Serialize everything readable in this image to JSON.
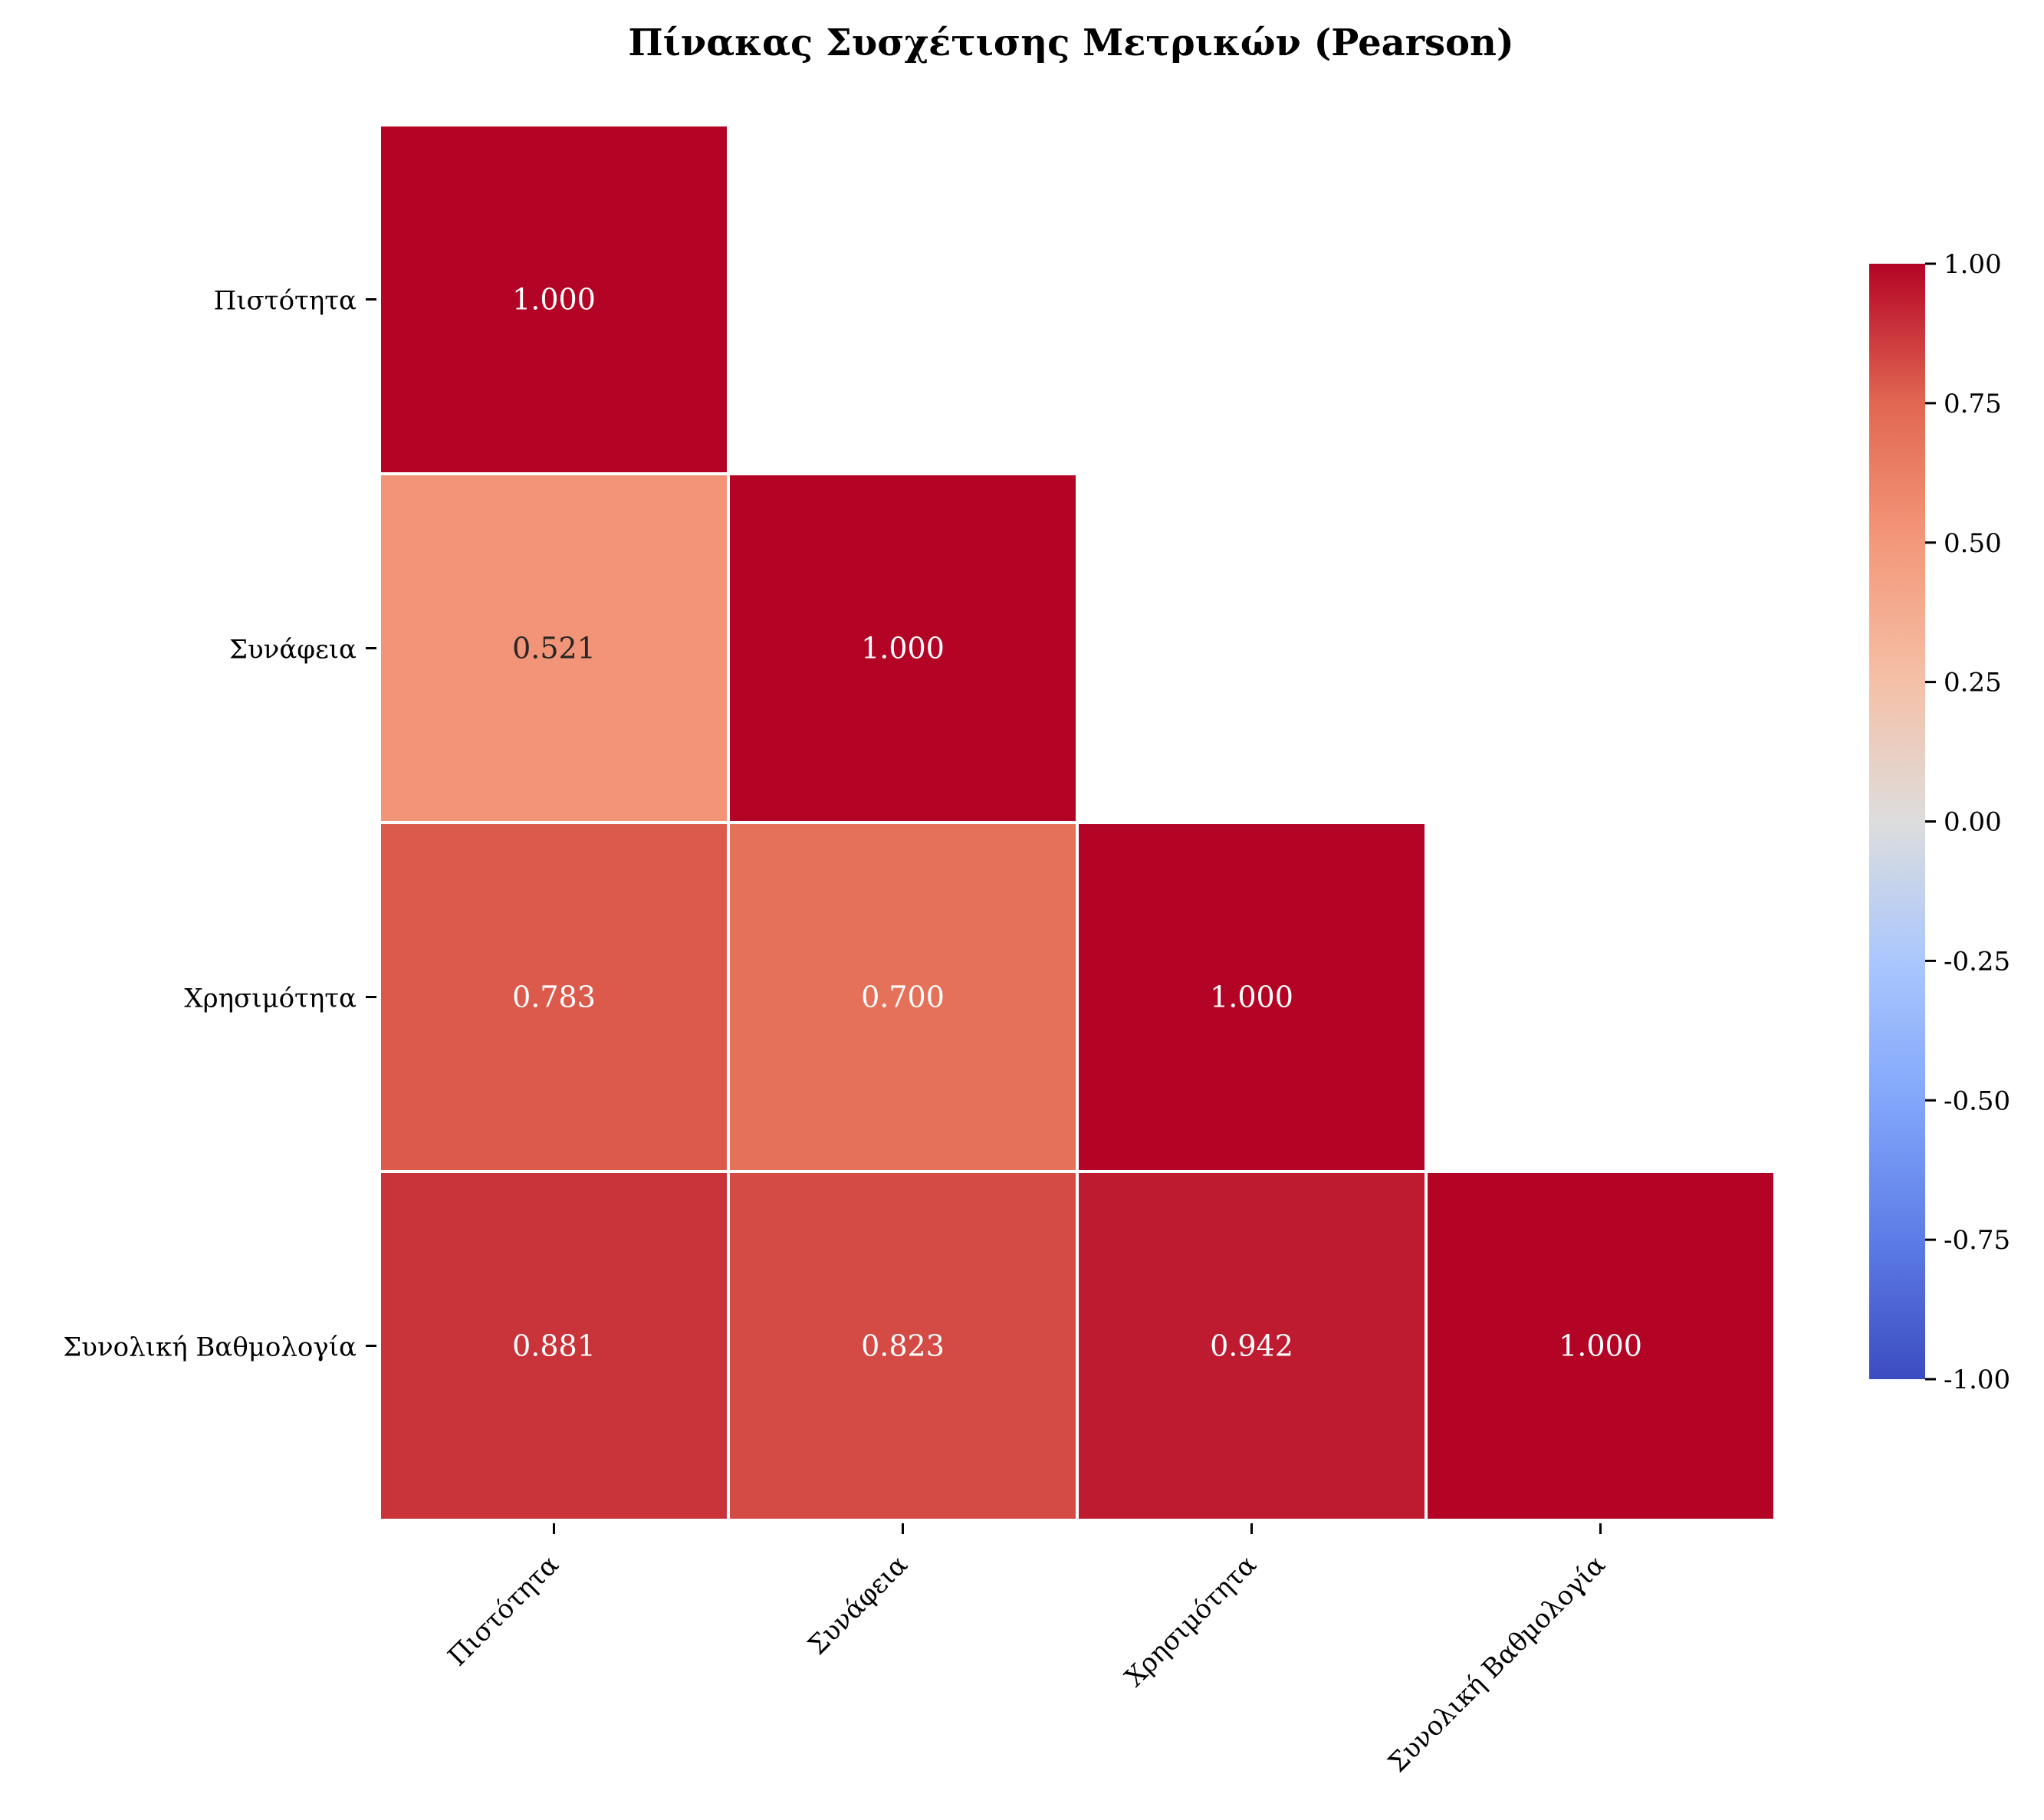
{
  "chart_data": {
    "type": "heatmap",
    "title": "Πίνακας Συσχέτισης Μετρικών (Pearson)",
    "xlabel": "",
    "ylabel": "",
    "row_labels": [
      "Πιστότητα",
      "Συνάφεια",
      "Χρησιμότητα",
      "Συνολική Βαθμολογία"
    ],
    "col_labels": [
      "Πιστότητα",
      "Συνάφεια",
      "Χρησιμότητα",
      "Συνολική Βαθμολογία"
    ],
    "mask": "upper-triangle",
    "values": [
      [
        1.0,
        null,
        null,
        null
      ],
      [
        0.521,
        1.0,
        null,
        null
      ],
      [
        0.783,
        0.7,
        1.0,
        null
      ],
      [
        0.881,
        0.823,
        0.942,
        1.0
      ]
    ],
    "value_labels": [
      [
        "1.000",
        null,
        null,
        null
      ],
      [
        "0.521",
        "1.000",
        null,
        null
      ],
      [
        "0.783",
        "0.700",
        "1.000",
        null
      ],
      [
        "0.881",
        "0.823",
        "0.942",
        "1.000"
      ]
    ],
    "colormap": "coolwarm",
    "vmin": -1.0,
    "vmax": 1.0,
    "colorbar": {
      "ticks": [
        1.0,
        0.75,
        0.5,
        0.25,
        0.0,
        -0.25,
        -0.5,
        -0.75,
        -1.0
      ],
      "tick_labels": [
        "1.00",
        "0.75",
        "0.50",
        "0.25",
        "0.00",
        "-0.25",
        "-0.50",
        "-0.75",
        "-1.00"
      ],
      "placement": "right"
    },
    "grid": false,
    "colors": {
      "low": "#3b4cc0",
      "mid": "#dddddd",
      "high": "#b40426",
      "cell_border": "#ffffff",
      "annotation_text": "#ffffff",
      "annotation_text_light_cell": "#262626"
    }
  }
}
